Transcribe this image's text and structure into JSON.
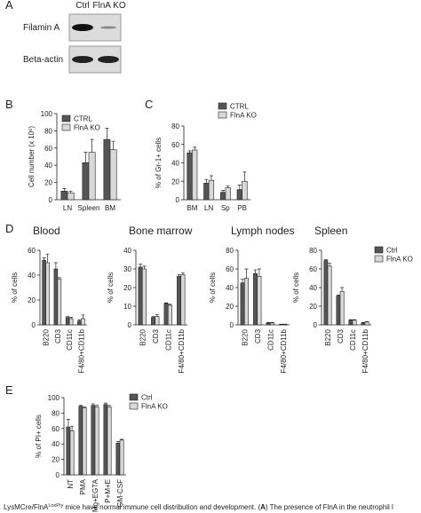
{
  "blot": {
    "panel": "A",
    "lanes": [
      "Ctrl",
      "FlnA KO"
    ],
    "rows": [
      "Filamin A",
      "Beta-actin"
    ]
  },
  "chart_data": [
    {
      "type": "bar",
      "panel": "B",
      "ylabel": "Cell number (x 10⁶)",
      "categories": [
        "LN",
        "Spleen",
        "BM"
      ],
      "series": [
        {
          "name": "CTRL",
          "color": "#555555",
          "values": [
            10,
            43,
            70
          ],
          "errors": [
            3,
            12,
            13
          ]
        },
        {
          "name": "FlnA KO",
          "color": "#d9d9d9",
          "values": [
            8,
            55,
            58
          ],
          "errors": [
            2,
            15,
            10
          ]
        }
      ],
      "ylim": [
        0,
        100
      ],
      "yticks": [
        0,
        20,
        40,
        60,
        80,
        100
      ],
      "legend": "upper left"
    },
    {
      "type": "bar",
      "panel": "C",
      "ylabel": "% of Gr-1+ cells",
      "categories": [
        "BM",
        "LN",
        "Sp",
        "PB"
      ],
      "series": [
        {
          "name": "CTRL",
          "color": "#555555",
          "values": [
            51,
            18,
            8,
            11
          ],
          "errors": [
            2,
            4,
            2,
            5
          ]
        },
        {
          "name": "FlnA KO",
          "color": "#d9d9d9",
          "values": [
            54,
            21,
            13,
            20
          ],
          "errors": [
            3,
            5,
            2,
            10
          ]
        }
      ],
      "ylim": [
        0,
        80
      ],
      "yticks": [
        0,
        20,
        40,
        60,
        80
      ],
      "legend": "upper right"
    },
    {
      "type": "bar",
      "panel": "D",
      "title": "Blood",
      "ylabel": "% of cells",
      "categories": [
        "B220",
        "CD3",
        "CD11c",
        "F4/80+CD11b"
      ],
      "rotate_labels": true,
      "series": [
        {
          "color": "#555555",
          "values": [
            52,
            45,
            6,
            3
          ],
          "errors": [
            2,
            5,
            1,
            1
          ]
        },
        {
          "color": "#d9d9d9",
          "values": [
            50,
            37,
            5,
            5
          ],
          "errors": [
            7,
            1,
            1,
            3
          ]
        }
      ],
      "ylim": [
        0,
        60
      ],
      "yticks": [
        0,
        20,
        40,
        60
      ]
    },
    {
      "type": "bar",
      "title": "Bone marrow",
      "ylabel": "% of cells",
      "categories": [
        "B220",
        "CD3",
        "CD11c",
        "F4/80+CD11b"
      ],
      "rotate_labels": true,
      "series": [
        {
          "color": "#555555",
          "values": [
            31,
            4,
            11.5,
            26
          ],
          "errors": [
            1.5,
            0.5,
            0.3,
            1
          ]
        },
        {
          "color": "#d9d9d9",
          "values": [
            30,
            4.5,
            10.5,
            27
          ],
          "errors": [
            1.5,
            1,
            0.5,
            1
          ]
        }
      ],
      "ylim": [
        0,
        40
      ],
      "yticks": [
        0,
        10,
        20,
        30,
        40
      ]
    },
    {
      "type": "bar",
      "title": "Lymph nodes",
      "ylabel": "% of cells",
      "categories": [
        "B220",
        "CD3",
        "CD11c",
        "F4/80+CD11b"
      ],
      "rotate_labels": true,
      "series": [
        {
          "color": "#555555",
          "values": [
            45,
            55,
            2,
            0.5
          ],
          "errors": [
            4,
            4,
            0.5,
            0.2
          ]
        },
        {
          "color": "#d9d9d9",
          "values": [
            50,
            52,
            2,
            0.5
          ],
          "errors": [
            10,
            8,
            0.5,
            0.2
          ]
        }
      ],
      "ylim": [
        0,
        80
      ],
      "yticks": [
        0,
        20,
        40,
        60,
        80
      ]
    },
    {
      "type": "bar",
      "title": "Spleen",
      "ylabel": "% of cells",
      "categories": [
        "B220",
        "CD3",
        "CD11c",
        "F4/80+CD11b"
      ],
      "rotate_labels": true,
      "series": [
        {
          "name": "Ctrl",
          "color": "#555555",
          "values": [
            69,
            31,
            5,
            2
          ],
          "errors": [
            1,
            1,
            0.5,
            0.5
          ]
        },
        {
          "name": "FlnA KO",
          "color": "#d9d9d9",
          "values": [
            63,
            36,
            5,
            3
          ],
          "errors": [
            3,
            4,
            0.5,
            0.5
          ]
        }
      ],
      "ylim": [
        0,
        80
      ],
      "yticks": [
        0,
        20,
        40,
        60,
        80
      ],
      "legend": "outside upper right"
    },
    {
      "type": "bar",
      "panel": "E",
      "ylabel": "% of PI+ cells",
      "categories": [
        "NT",
        "PMA",
        "Mg+EGTA",
        "P+M+E",
        "GM-CSF"
      ],
      "rotate_labels": true,
      "series": [
        {
          "name": "Ctrl",
          "color": "#555555",
          "values": [
            62,
            89,
            90,
            91,
            41
          ],
          "errors": [
            10,
            1,
            2,
            2,
            2
          ]
        },
        {
          "name": "FlnA KO",
          "color": "#d9d9d9",
          "values": [
            57,
            87,
            88,
            88,
            45
          ],
          "errors": [
            6,
            1,
            2,
            2,
            1
          ]
        }
      ],
      "ylim": [
        0,
        100
      ],
      "yticks": [
        0,
        20,
        40,
        60,
        80,
        100
      ],
      "legend": "outside upper right"
    }
  ],
  "caption": {
    "pre": "LysMCre/FlnA",
    "sup": "LoxP/y",
    "mid": " mice have normal immune cell distribution and development. (",
    "bold": "A",
    "post": ") The presence of FlnA in the neutrophil l"
  }
}
